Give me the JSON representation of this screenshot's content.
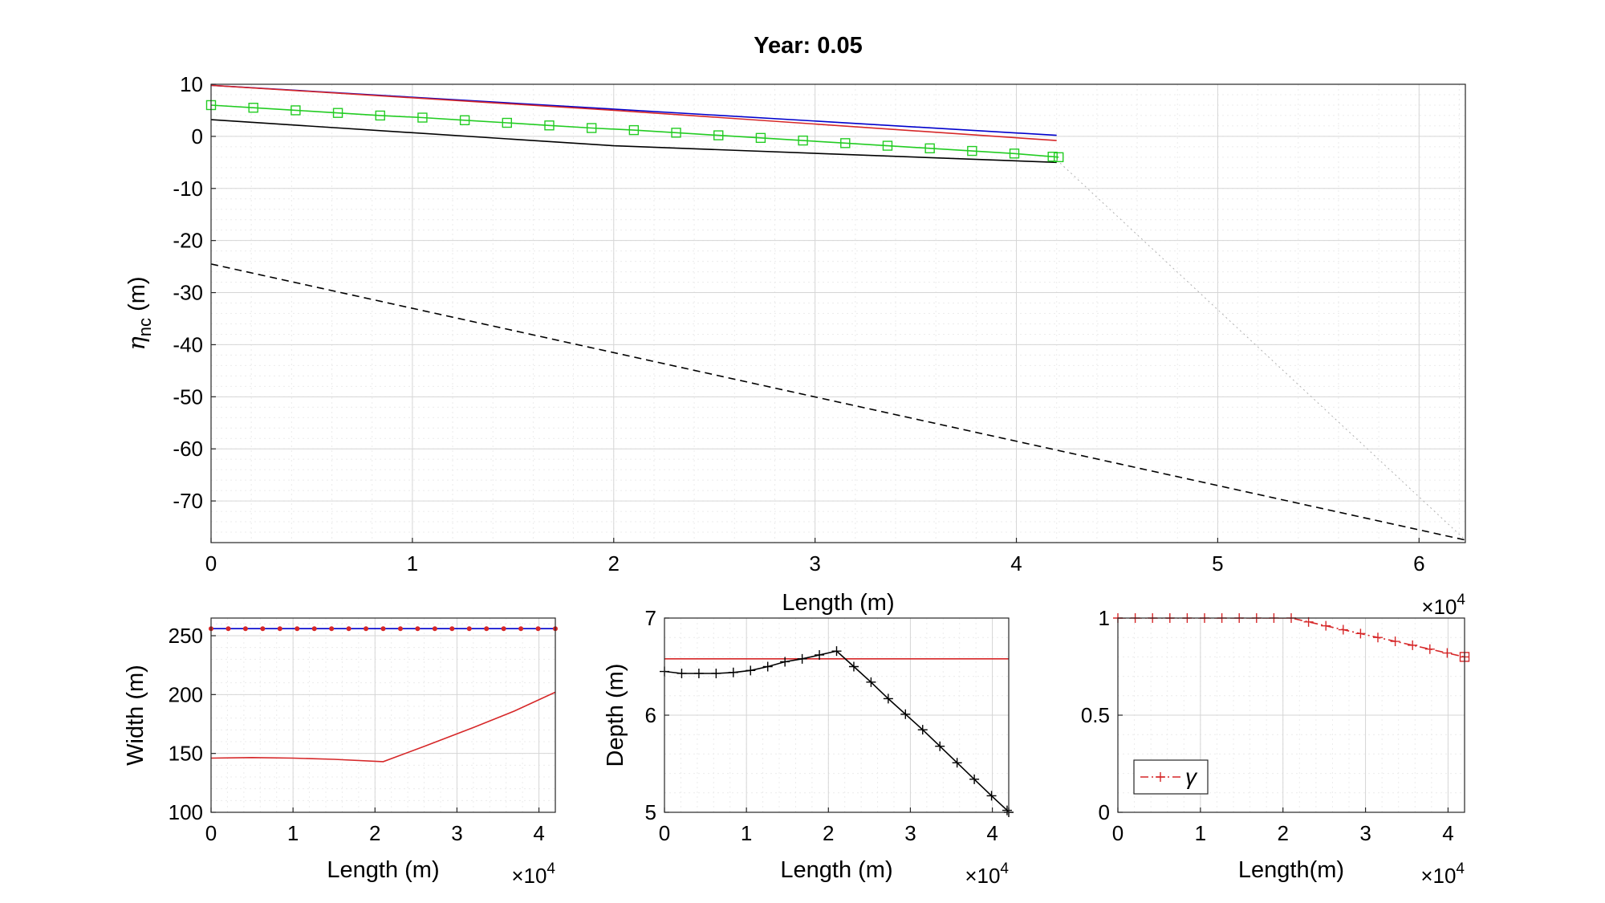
{
  "figure": {
    "title": "Year: 0.05"
  },
  "chart_data": [
    {
      "id": "main",
      "type": "line",
      "title": "Year: 0.05",
      "xlabel": "Length (m)",
      "ylabel_main": "η",
      "ylabel_sub": "nc",
      "ylabel_unit": " (m)",
      "xlim": [
        0,
        62300
      ],
      "ylim": [
        -78,
        10
      ],
      "x_multiplier": "×10",
      "x_multiplier_exp": "4",
      "xticks": [
        0,
        10000,
        20000,
        30000,
        40000,
        50000,
        60000
      ],
      "xticklabels": [
        "0",
        "1",
        "2",
        "3",
        "4",
        "5",
        "6"
      ],
      "yticks": [
        10,
        0,
        -10,
        -20,
        -30,
        -40,
        -50,
        -60,
        -70
      ],
      "yticklabels": [
        "10",
        "0",
        "-10",
        "-20",
        "-30",
        "-40",
        "-50",
        "-60",
        "-70"
      ],
      "grid": true,
      "series": [
        {
          "color": "#0000cc",
          "dash": "solid",
          "x": [
            0,
            42000
          ],
          "y": [
            9.8,
            0.2
          ]
        },
        {
          "color": "#d62728",
          "dash": "solid",
          "x": [
            0,
            20000,
            42000
          ],
          "y": [
            9.8,
            5.0,
            -0.8
          ]
        },
        {
          "color": "#000000",
          "dash": "solid",
          "x": [
            0,
            20000,
            42000
          ],
          "y": [
            3.2,
            -1.8,
            -5.0
          ]
        },
        {
          "color": "#22cc22",
          "dash": "solid",
          "marker": "square",
          "x": [
            0,
            2100,
            4200,
            6300,
            8400,
            10500,
            12600,
            14700,
            16800,
            18900,
            21000,
            23100,
            25200,
            27300,
            29400,
            31500,
            33600,
            35700,
            37800,
            39900,
            41800,
            42100
          ],
          "y": [
            6.0,
            5.5,
            5.0,
            4.5,
            4.0,
            3.6,
            3.1,
            2.6,
            2.1,
            1.6,
            1.2,
            0.7,
            0.2,
            -0.3,
            -0.8,
            -1.3,
            -1.8,
            -2.3,
            -2.8,
            -3.3,
            -3.9,
            -4.0
          ]
        },
        {
          "color": "#000000",
          "dash": "dashed",
          "x": [
            0,
            62300
          ],
          "y": [
            -24.5,
            -77.5
          ]
        },
        {
          "color": "#b0b0b0",
          "dash": "dotted",
          "x": [
            42000,
            62300
          ],
          "y": [
            -4.5,
            -77.5
          ]
        }
      ]
    },
    {
      "id": "width",
      "type": "line",
      "xlabel": "Length (m)",
      "ylabel": "Width (m)",
      "xlim": [
        0,
        42000
      ],
      "ylim": [
        100,
        265
      ],
      "x_multiplier": "×10",
      "x_multiplier_exp": "4",
      "xticks": [
        0,
        10000,
        20000,
        30000,
        40000
      ],
      "xticklabels": [
        "0",
        "1",
        "2",
        "3",
        "4"
      ],
      "yticks": [
        100,
        150,
        200,
        250
      ],
      "yticklabels": [
        "100",
        "150",
        "200",
        "250"
      ],
      "grid": true,
      "series": [
        {
          "color": "#0000cc",
          "dash": "solid",
          "x": [
            0,
            42000
          ],
          "y": [
            256,
            256
          ]
        },
        {
          "color": "#d62728",
          "dash": "none",
          "marker": "dot",
          "x": [
            0,
            2100,
            4200,
            6300,
            8400,
            10500,
            12600,
            14700,
            16800,
            18900,
            21000,
            23100,
            25200,
            27300,
            29400,
            31500,
            33600,
            35700,
            37800,
            39900,
            42000
          ],
          "y": [
            256,
            256,
            256,
            256,
            256,
            256,
            256,
            256,
            256,
            256,
            256,
            256,
            256,
            256,
            256,
            256,
            256,
            256,
            256,
            256,
            256
          ]
        },
        {
          "color": "#d62728",
          "dash": "solid",
          "x": [
            0,
            5000,
            10000,
            15000,
            21000,
            26000,
            32000,
            37000,
            42000
          ],
          "y": [
            146,
            146.5,
            146,
            145,
            143,
            156,
            172,
            186,
            202
          ]
        }
      ]
    },
    {
      "id": "depth",
      "type": "line",
      "xlabel": "Length (m)",
      "ylabel": "Depth (m)",
      "xlim": [
        0,
        42000
      ],
      "ylim": [
        5,
        7
      ],
      "x_multiplier": "×10",
      "x_multiplier_exp": "4",
      "xticks": [
        0,
        10000,
        20000,
        30000,
        40000
      ],
      "xticklabels": [
        "0",
        "1",
        "2",
        "3",
        "4"
      ],
      "yticks": [
        5,
        6,
        7
      ],
      "yticklabels": [
        "5",
        "6",
        "7"
      ],
      "grid": true,
      "series": [
        {
          "color": "#d62728",
          "dash": "solid",
          "x": [
            0,
            42000
          ],
          "y": [
            6.58,
            6.58
          ]
        },
        {
          "color": "#000000",
          "dash": "solid",
          "marker": "plus",
          "x": [
            0,
            2100,
            4200,
            6300,
            8400,
            10500,
            12600,
            14700,
            16800,
            18900,
            21000,
            23100,
            25200,
            27300,
            29400,
            31500,
            33600,
            35700,
            37800,
            39900,
            41800,
            42000
          ],
          "y": [
            6.45,
            6.43,
            6.43,
            6.43,
            6.44,
            6.46,
            6.5,
            6.55,
            6.58,
            6.62,
            6.66,
            6.5,
            6.34,
            6.17,
            6.01,
            5.85,
            5.68,
            5.51,
            5.34,
            5.17,
            5.02,
            5.0
          ]
        }
      ]
    },
    {
      "id": "gamma",
      "type": "line",
      "xlabel": "Length(m)",
      "ylabel": "",
      "xlim": [
        0,
        42000
      ],
      "ylim": [
        0,
        1
      ],
      "x_multiplier": "×10",
      "x_multiplier_exp": "4",
      "xticks": [
        0,
        10000,
        20000,
        30000,
        40000
      ],
      "xticklabels": [
        "0",
        "1",
        "2",
        "3",
        "4"
      ],
      "yticks": [
        0,
        0.5,
        1
      ],
      "yticklabels": [
        "0",
        "0.5",
        "1"
      ],
      "grid": true,
      "legend": {
        "placement": "bottom-left",
        "entries": [
          "γ"
        ]
      },
      "series": [
        {
          "name": "γ",
          "color": "#d62728",
          "dash": "dashdot",
          "marker": "plus",
          "x": [
            0,
            2100,
            4200,
            6300,
            8400,
            10500,
            12600,
            14700,
            16800,
            18900,
            21000,
            23100,
            25200,
            27300,
            29400,
            31500,
            33600,
            35700,
            37800,
            39900,
            42000
          ],
          "y": [
            1,
            1,
            1,
            1,
            1,
            1,
            1,
            1,
            1,
            1,
            1,
            0.98,
            0.96,
            0.94,
            0.92,
            0.9,
            0.88,
            0.86,
            0.84,
            0.82,
            0.8
          ]
        }
      ]
    }
  ]
}
